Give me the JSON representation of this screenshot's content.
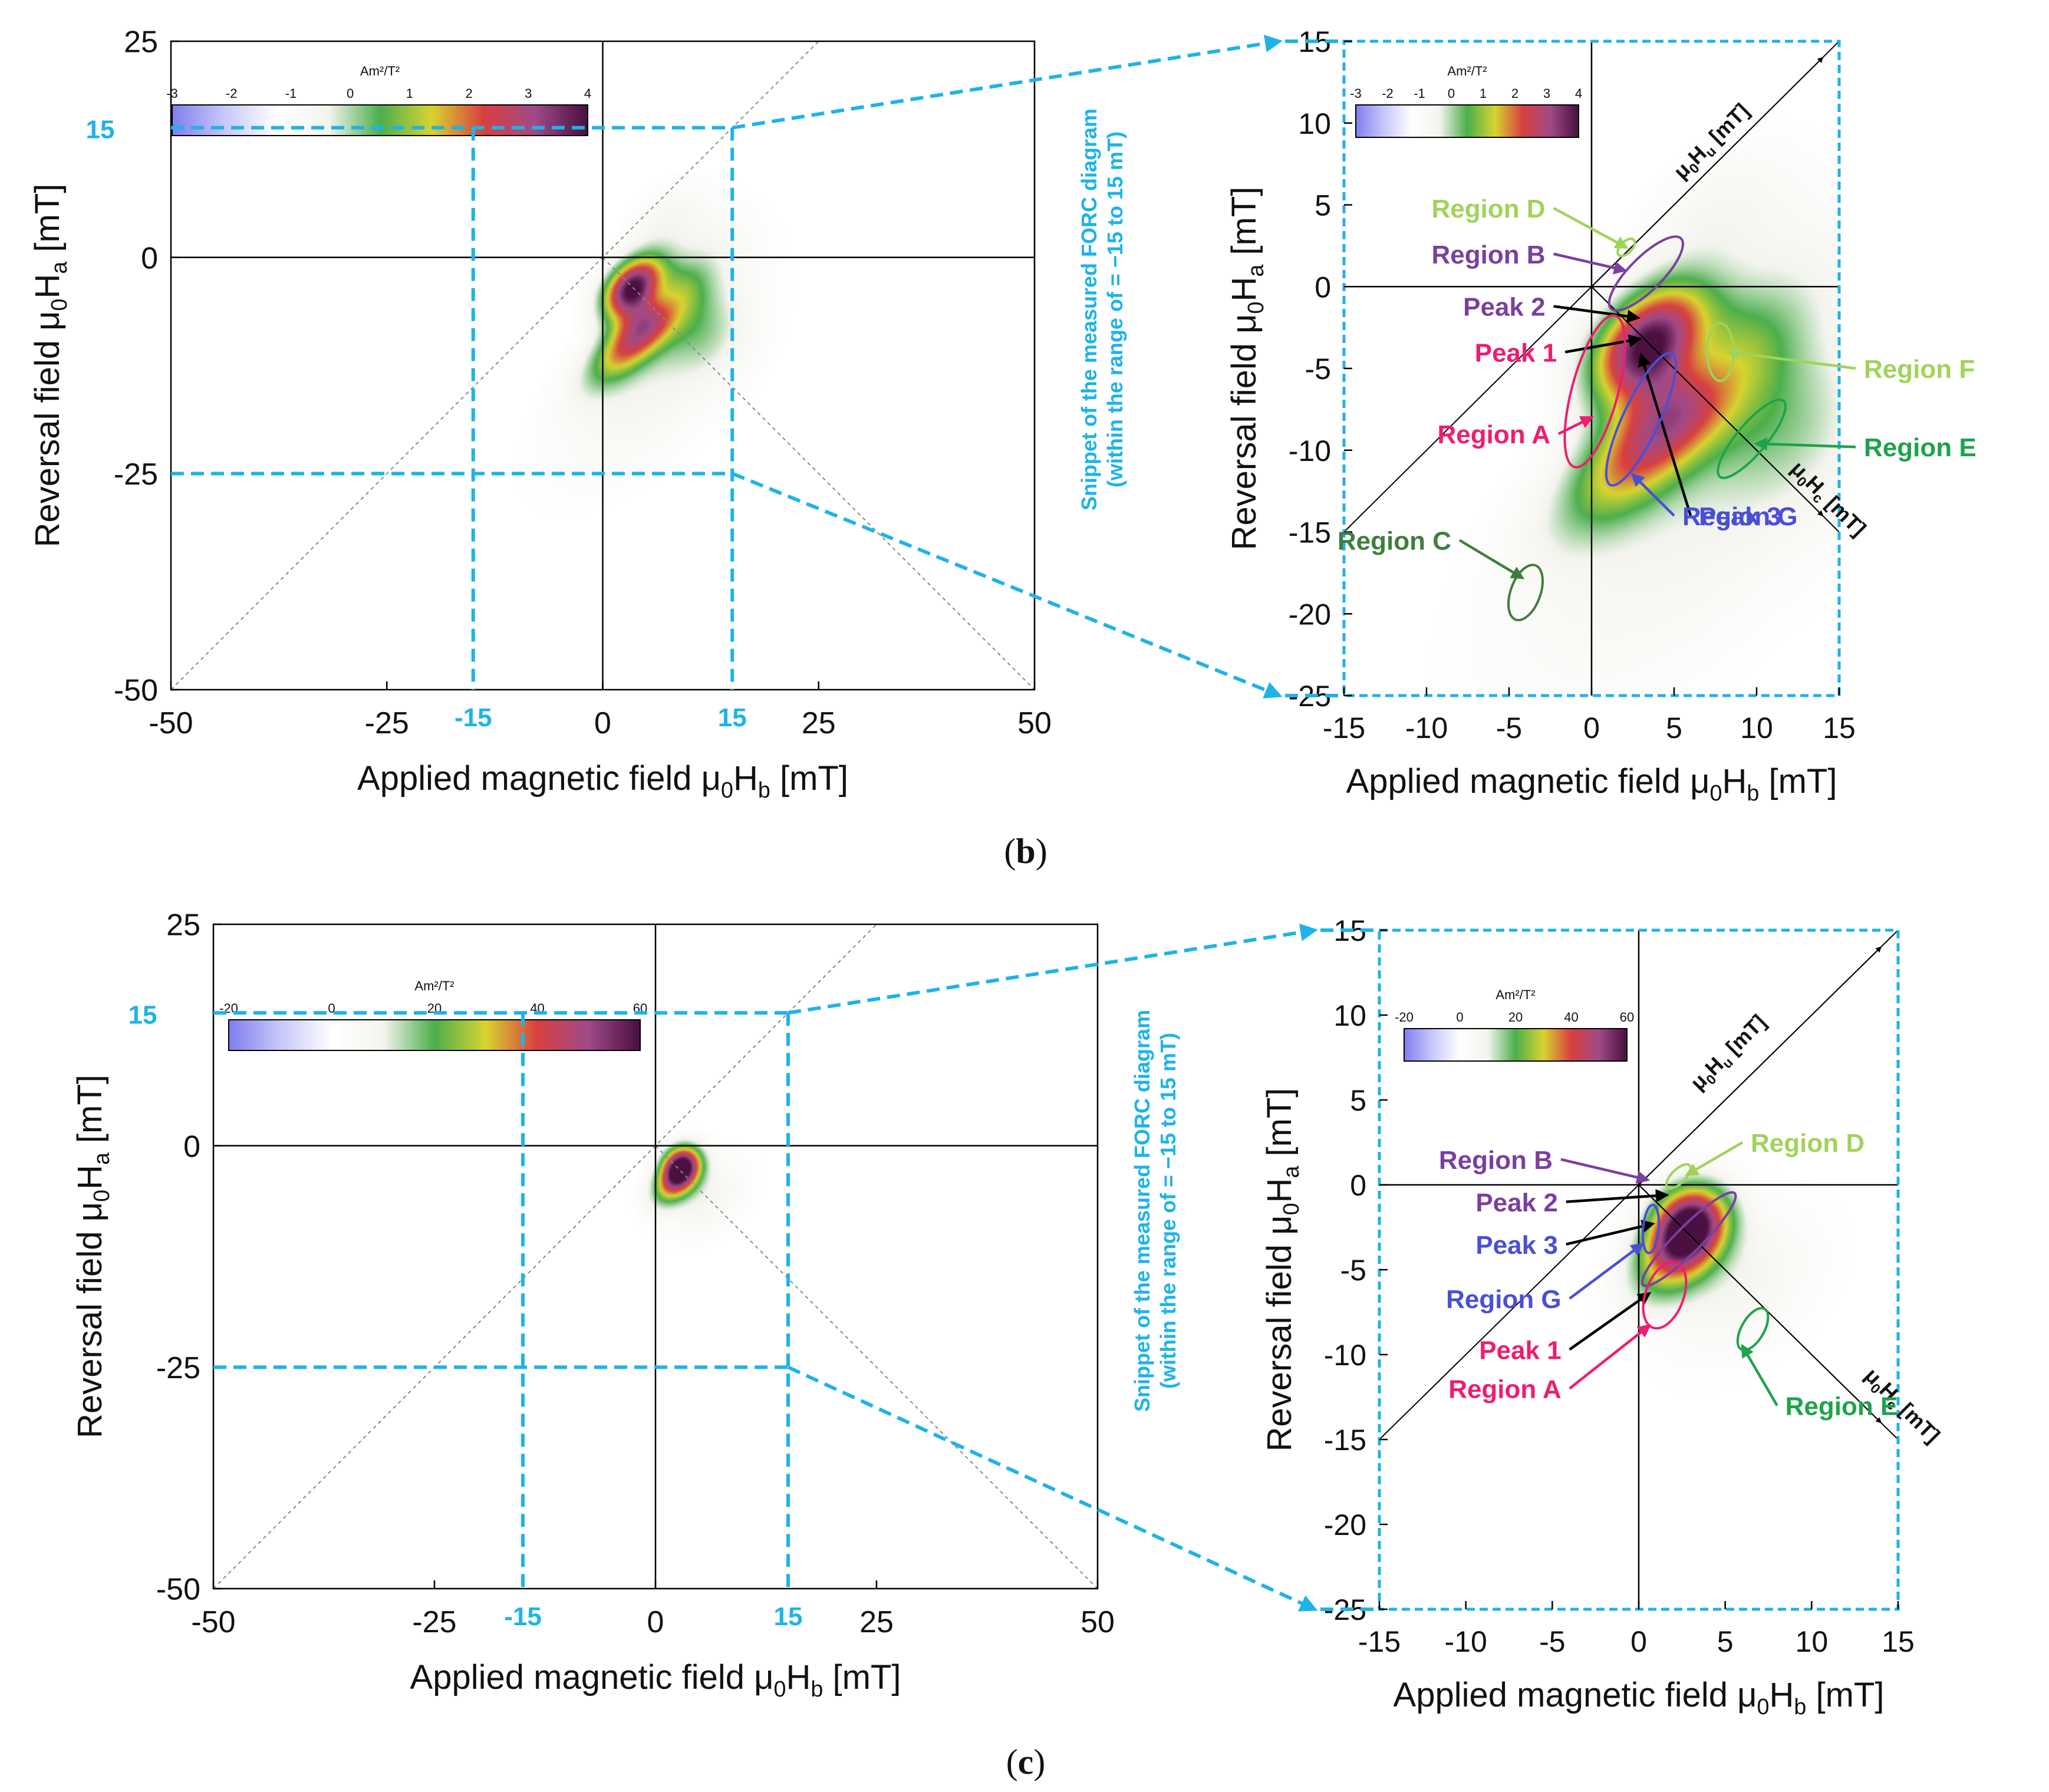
{
  "captions": {
    "b": "b",
    "c": "c"
  },
  "colors": {
    "highlight": "#1eb3e8",
    "regionA": "#ee1d6f",
    "regionB": "#7b3fa0",
    "regionC": "#3f7f3a",
    "regionD": "#9fd45a",
    "regionE": "#1ea34a",
    "regionF": "#9fd45a",
    "regionG": "#4a4fd6",
    "peak": "#000000"
  },
  "colorscale": [
    "#8080f0",
    "#c8c8f8",
    "#ffffff",
    "#f4f4ef",
    "#4caf4c",
    "#d8d430",
    "#d84040",
    "#a04a88",
    "#4a1040"
  ],
  "axis_labels": {
    "x": "Applied magnetic field μ₀H_b [mT]",
    "y": "Reversal field μ₀H_a [mT]",
    "hu": "μ₀H_u [mT]",
    "hc": "μ₀H_c [mT]"
  },
  "snippet_label": [
    "Snippet of the measured FORC diagram",
    "(within the range of  = −15 to 15 mT)"
  ],
  "highlight_labels": {
    "neg15": "-15",
    "pos15": "15"
  },
  "chart_data": [
    {
      "id": "b-full",
      "type": "heatmap",
      "xlim": [
        -50,
        50
      ],
      "ylim": [
        -50,
        25
      ],
      "xticks": [
        "-50",
        "-25",
        "0",
        "25",
        "50"
      ],
      "yticks": [
        "25",
        "0",
        "-25",
        "-50"
      ],
      "xlabel": "Applied magnetic field μ₀H_b [mT]",
      "ylabel": "Reversal field μ₀H_a [mT]",
      "colorbar": {
        "title": "Am²/T²",
        "ticks": [
          "-3",
          "-2",
          "-1",
          "0",
          "1",
          "2",
          "3",
          "4"
        ],
        "min": -3,
        "max": 4
      },
      "highlight_box": {
        "x": [
          -15,
          15
        ],
        "y": [
          -25,
          15
        ]
      },
      "blobs": [
        {
          "name": "Region B",
          "hu": 0,
          "hc": 3.5,
          "su": 2.0,
          "sc": 1.3,
          "amp": 4.0
        },
        {
          "name": "Region A",
          "hu": -2.2,
          "hc": 6.5,
          "su": 3.5,
          "sc": 1.3,
          "amp": 2.8
        },
        {
          "name": "Region C",
          "hu": -4.0,
          "hc": 10.0,
          "su": 7.0,
          "sc": 3.2,
          "amp": 0.6
        },
        {
          "name": "Region E",
          "hu": 1.5,
          "hc": 9.0,
          "su": 2.5,
          "sc": 2.8,
          "amp": 0.7
        },
        {
          "name": "Region F",
          "hu": 5.5,
          "hc": 5.5,
          "su": 3.5,
          "sc": 2.5,
          "amp": 0.45
        },
        {
          "name": "Region G",
          "hu": 1.0,
          "hc": 5.5,
          "su": 1.3,
          "sc": 1.4,
          "amp": -0.8
        },
        {
          "name": "Region D",
          "hu": 6.0,
          "hc": 1.5,
          "su": 2.5,
          "sc": 1.5,
          "amp": 0.4
        }
      ]
    },
    {
      "id": "b-zoom",
      "type": "heatmap",
      "xlim": [
        -15,
        15
      ],
      "ylim": [
        -25,
        15
      ],
      "xticks": [
        "-15",
        "-10",
        "-5",
        "0",
        "5",
        "10",
        "15"
      ],
      "yticks": [
        "15",
        "10",
        "5",
        "0",
        "-5",
        "-10",
        "-15",
        "-20",
        "-25"
      ],
      "xlabel": "Applied magnetic field μ₀H_b [mT]",
      "ylabel": "Reversal field μ₀H_a [mT]",
      "colorbar": {
        "title": "Am²/T²",
        "ticks": [
          "-3",
          "-2",
          "-1",
          "0",
          "1",
          "2",
          "3",
          "4"
        ],
        "min": -3,
        "max": 4
      },
      "annotations": [
        {
          "label": "Region D",
          "color": "regionD",
          "ellipse": [
            2.1,
            2.4,
            1.3,
            0.7,
            45
          ],
          "from": [
            -2.3,
            4.8
          ],
          "to": [
            2.1,
            2.4
          ]
        },
        {
          "label": "Region B",
          "color": "regionB",
          "ellipse": [
            3.3,
            0.8,
            6.0,
            2.0,
            45
          ],
          "from": [
            -2.3,
            2.0
          ],
          "to": [
            2.0,
            1.0
          ]
        },
        {
          "label": "Peak 2",
          "color": "peak",
          "from": [
            -2.3,
            -1.2
          ],
          "to": [
            2.8,
            -1.9
          ]
        },
        {
          "label": "Peak 1",
          "color": "peak",
          "from": [
            -1.6,
            -4.0
          ],
          "to": [
            2.9,
            -3.2
          ]
        },
        {
          "label": "Region A",
          "color": "regionA",
          "ellipse": [
            0.2,
            -6.4,
            9.5,
            2.8,
            75
          ],
          "from": [
            -2.0,
            -9.0
          ],
          "to": [
            0.0,
            -8.0
          ]
        },
        {
          "label": "Region C",
          "color": "regionC",
          "ellipse": [
            -4.0,
            -18.7,
            3.5,
            1.8,
            70
          ],
          "from": [
            -8.0,
            -15.5
          ],
          "to": [
            -4.2,
            -17.8
          ]
        },
        {
          "label": "Region F",
          "color": "regionF",
          "ellipse": [
            7.8,
            -4.0,
            3.5,
            1.6,
            90
          ],
          "from": [
            16.0,
            -5.0
          ],
          "to": [
            8.3,
            -4.0
          ]
        },
        {
          "label": "Region E",
          "color": "regionE",
          "ellipse": [
            9.7,
            -9.3,
            6.0,
            1.8,
            50
          ],
          "from": [
            16.0,
            -9.8
          ],
          "to": [
            10.0,
            -9.6
          ]
        },
        {
          "label": "Peak 3",
          "color": "peak",
          "from": [
            6.0,
            -14.0
          ],
          "to": [
            3.0,
            -4.2
          ]
        },
        {
          "label": "Region G",
          "color": "regionG",
          "ellipse": [
            3.0,
            -8.1,
            8.8,
            2.2,
            65
          ],
          "from": [
            5.0,
            -14.0
          ],
          "to": [
            2.5,
            -11.5
          ]
        }
      ],
      "blobs": [
        {
          "name": "Region B",
          "hu": 0,
          "hc": 3.5,
          "su": 2.0,
          "sc": 1.3,
          "amp": 4.0
        },
        {
          "name": "Region A",
          "hu": -2.2,
          "hc": 6.5,
          "su": 3.5,
          "sc": 1.3,
          "amp": 2.8
        },
        {
          "name": "Region C",
          "hu": -4.0,
          "hc": 10.0,
          "su": 7.0,
          "sc": 3.2,
          "amp": 0.6
        },
        {
          "name": "Region E",
          "hu": 1.5,
          "hc": 9.0,
          "su": 2.5,
          "sc": 2.8,
          "amp": 0.7
        },
        {
          "name": "Region F",
          "hu": 5.5,
          "hc": 5.5,
          "su": 3.5,
          "sc": 2.5,
          "amp": 0.45
        },
        {
          "name": "Region G",
          "hu": 1.0,
          "hc": 5.5,
          "su": 1.3,
          "sc": 1.4,
          "amp": -0.8
        },
        {
          "name": "Region D",
          "hu": 6.0,
          "hc": 1.5,
          "su": 2.5,
          "sc": 1.5,
          "amp": 0.4
        }
      ]
    },
    {
      "id": "c-full",
      "type": "heatmap",
      "xlim": [
        -50,
        50
      ],
      "ylim": [
        -50,
        25
      ],
      "xticks": [
        "-50",
        "-25",
        "0",
        "25",
        "50"
      ],
      "yticks": [
        "25",
        "0",
        "-25",
        "-50"
      ],
      "xlabel": "Applied magnetic field μ₀H_b [mT]",
      "ylabel": "Reversal field μ₀H_a [mT]",
      "colorbar": {
        "title": "Am²/T²",
        "ticks": [
          "-20",
          "0",
          "20",
          "40",
          "60"
        ],
        "min": -20,
        "max": 60
      },
      "highlight_box": {
        "x": [
          -15,
          15
        ],
        "y": [
          -25,
          15
        ]
      },
      "blobs": [
        {
          "name": "Region B",
          "hu": 0.2,
          "hc": 2.5,
          "su": 1.2,
          "sc": 1.0,
          "amp": 60
        },
        {
          "name": "Region A",
          "hu": -1.0,
          "hc": 3.2,
          "su": 1.6,
          "sc": 1.0,
          "amp": 30
        },
        {
          "name": "Region E",
          "hu": 0,
          "hc": 6.0,
          "su": 2.5,
          "sc": 1.6,
          "amp": 8
        },
        {
          "name": "Region G",
          "hu": -0.5,
          "hc": 1.8,
          "su": 1.0,
          "sc": 0.8,
          "amp": -8
        }
      ]
    },
    {
      "id": "c-zoom",
      "type": "heatmap",
      "xlim": [
        -15,
        15
      ],
      "ylim": [
        -25,
        15
      ],
      "xticks": [
        "-15",
        "-10",
        "-5",
        "0",
        "5",
        "10",
        "15"
      ],
      "yticks": [
        "15",
        "10",
        "5",
        "0",
        "-5",
        "-10",
        "-15",
        "-20",
        "-25"
      ],
      "xlabel": "Applied magnetic field μ₀H_b [mT]",
      "ylabel": "Reversal field μ₀H_a [mT]",
      "colorbar": {
        "title": "Am²/T²",
        "ticks": [
          "-20",
          "0",
          "20",
          "40",
          "60"
        ],
        "min": -20,
        "max": 60
      },
      "annotations": [
        {
          "label": "Region D",
          "color": "regionD",
          "ellipse": [
            2.3,
            0.5,
            1.8,
            0.8,
            45
          ],
          "from": [
            6.0,
            2.5
          ],
          "to": [
            2.8,
            0.6
          ]
        },
        {
          "label": "Region B",
          "color": "regionB",
          "ellipse": [
            2.9,
            -3.2,
            7.5,
            1.5,
            45
          ],
          "from": [
            -4.5,
            1.5
          ],
          "to": [
            0.5,
            0.3
          ]
        },
        {
          "label": "Peak 2",
          "color": "peak",
          "from": [
            -4.2,
            -1.0
          ],
          "to": [
            1.6,
            -0.6
          ]
        },
        {
          "label": "Peak 3",
          "color": "peak",
          "from": [
            -4.2,
            -3.5
          ],
          "to": [
            0.8,
            -2.3
          ]
        },
        {
          "label": "Region G",
          "color": "regionG",
          "ellipse": [
            0.7,
            -2.6,
            2.8,
            0.9,
            85
          ],
          "from": [
            -4.0,
            -6.7
          ],
          "to": [
            0.2,
            -3.5
          ]
        },
        {
          "label": "Peak 1",
          "color": "peak",
          "from": [
            -4.0,
            -9.7
          ],
          "to": [
            0.6,
            -6.4
          ]
        },
        {
          "label": "Region A",
          "color": "regionA",
          "ellipse": [
            1.5,
            -6.5,
            4.0,
            2.2,
            70
          ],
          "from": [
            -4.0,
            -12.0
          ],
          "to": [
            0.6,
            -8.3
          ]
        },
        {
          "label": "Region E",
          "color": "regionE",
          "ellipse": [
            6.6,
            -8.5,
            2.7,
            1.3,
            60
          ],
          "from": [
            8.0,
            -13.0
          ],
          "to": [
            6.0,
            -9.5
          ]
        }
      ],
      "blobs": [
        {
          "name": "Region B",
          "hu": 0.2,
          "hc": 2.5,
          "su": 1.2,
          "sc": 1.0,
          "amp": 60
        },
        {
          "name": "Region A",
          "hu": -1.0,
          "hc": 3.2,
          "su": 1.6,
          "sc": 1.0,
          "amp": 30
        },
        {
          "name": "Region E",
          "hu": 0,
          "hc": 6.0,
          "su": 2.5,
          "sc": 1.6,
          "amp": 8
        },
        {
          "name": "Region G",
          "hu": -0.5,
          "hc": 1.8,
          "su": 1.0,
          "sc": 0.8,
          "amp": -8
        }
      ]
    }
  ]
}
